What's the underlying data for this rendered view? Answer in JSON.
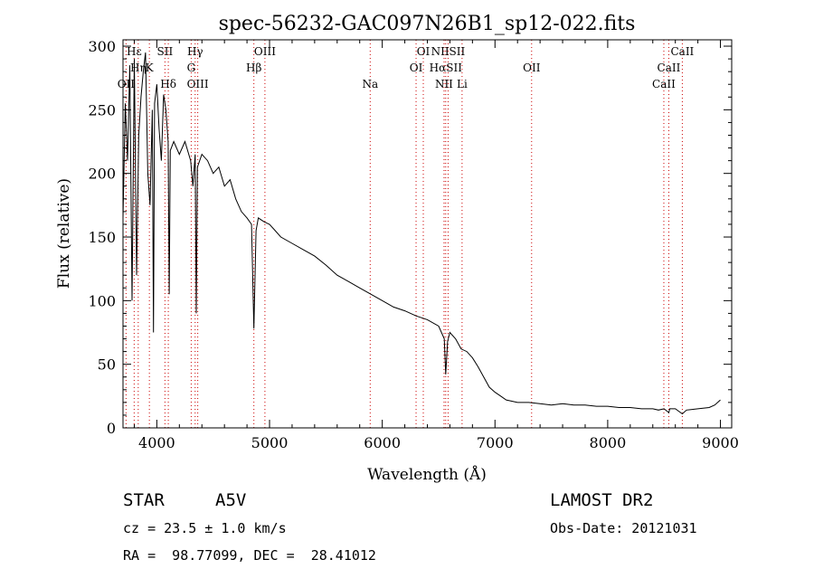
{
  "chart_data": {
    "type": "line",
    "title": "spec-56232-GAC097N26B1_sp12-022.fits",
    "xlabel": "Wavelength (Å)",
    "ylabel": "Flux (relative)",
    "xlim": [
      3700,
      9100
    ],
    "ylim": [
      0,
      305
    ],
    "xticks": [
      4000,
      5000,
      6000,
      7000,
      8000,
      9000
    ],
    "yticks": [
      0,
      50,
      100,
      150,
      200,
      250,
      300
    ],
    "grid": false,
    "series": [
      {
        "x": [
          3700,
          3720,
          3740,
          3760,
          3780,
          3800,
          3820,
          3840,
          3860,
          3880,
          3900,
          3920,
          3940,
          3960,
          3970,
          3980,
          4000,
          4020,
          4040,
          4060,
          4080,
          4100,
          4110,
          4120,
          4150,
          4200,
          4250,
          4300,
          4320,
          4340,
          4350,
          4360,
          4400,
          4450,
          4500,
          4550,
          4600,
          4650,
          4700,
          4750,
          4800,
          4840,
          4861,
          4880,
          4900,
          4950,
          5000,
          5050,
          5100,
          5200,
          5300,
          5400,
          5500,
          5600,
          5700,
          5800,
          5900,
          6000,
          6100,
          6200,
          6300,
          6400,
          6500,
          6550,
          6563,
          6580,
          6600,
          6650,
          6700,
          6750,
          6800,
          6850,
          6900,
          6950,
          7000,
          7050,
          7100,
          7150,
          7200,
          7300,
          7400,
          7500,
          7600,
          7700,
          7800,
          7900,
          8000,
          8100,
          8200,
          8300,
          8400,
          8450,
          8500,
          8542,
          8550,
          8600,
          8662,
          8700,
          8800,
          8900,
          8950,
          9000
        ],
        "y": [
          165,
          255,
          210,
          285,
          100,
          290,
          120,
          230,
          260,
          280,
          295,
          200,
          175,
          250,
          75,
          255,
          270,
          235,
          210,
          262,
          250,
          225,
          105,
          218,
          225,
          215,
          225,
          210,
          190,
          215,
          90,
          205,
          215,
          210,
          200,
          205,
          190,
          195,
          180,
          170,
          165,
          160,
          78,
          155,
          165,
          162,
          160,
          155,
          150,
          145,
          140,
          135,
          128,
          120,
          115,
          110,
          105,
          100,
          95,
          92,
          88,
          85,
          80,
          70,
          42,
          68,
          75,
          70,
          62,
          60,
          55,
          48,
          40,
          32,
          28,
          25,
          22,
          21,
          20,
          20,
          19,
          18,
          19,
          18,
          18,
          17,
          17,
          16,
          16,
          15,
          15,
          14,
          15,
          12,
          15,
          15,
          11,
          14,
          15,
          16,
          18,
          22
        ]
      }
    ],
    "line_markers": [
      {
        "label": "Hε",
        "x": 3799,
        "row": 0
      },
      {
        "label": "OII",
        "x": 3727,
        "row": 2
      },
      {
        "label": "Hη",
        "x": 3835,
        "row": 1
      },
      {
        "label": "K",
        "x": 3934,
        "row": 1
      },
      {
        "label": "SII",
        "x": 4072,
        "row": 0
      },
      {
        "label": "Hδ",
        "x": 4102,
        "row": 2
      },
      {
        "label": "Hγ",
        "x": 4340,
        "row": 0
      },
      {
        "label": "G",
        "x": 4305,
        "row": 1
      },
      {
        "label": "OIII",
        "x": 4363,
        "row": 2
      },
      {
        "label": "OIII",
        "x": 4959,
        "row": 0
      },
      {
        "label": "Hβ",
        "x": 4861,
        "row": 1
      },
      {
        "label": "Na",
        "x": 5893,
        "row": 2
      },
      {
        "label": "OI",
        "x": 6364,
        "row": 0
      },
      {
        "label": "OI",
        "x": 6300,
        "row": 1
      },
      {
        "label": "NIISII",
        "x": 6584,
        "row": 0
      },
      {
        "label": "HαSII",
        "x": 6563,
        "row": 1
      },
      {
        "label": "NII",
        "x": 6548,
        "row": 2
      },
      {
        "label": "Li",
        "x": 6708,
        "row": 2
      },
      {
        "label": "OII",
        "x": 7325,
        "row": 1
      },
      {
        "label": "CaII",
        "x": 8662,
        "row": 0
      },
      {
        "label": "CaII",
        "x": 8542,
        "row": 1
      },
      {
        "label": "CaII",
        "x": 8498,
        "row": 2
      }
    ],
    "marker_color": "#cc0000",
    "line_color": "#000000"
  },
  "info": {
    "object_class": "STAR",
    "subclass": "A5V",
    "survey": "LAMOST DR2",
    "redshift": "cz = 23.5 ± 1.0 km/s",
    "obs_date": "Obs-Date: 20121031",
    "coords": "RA =  98.77099, DEC =  28.41012"
  }
}
